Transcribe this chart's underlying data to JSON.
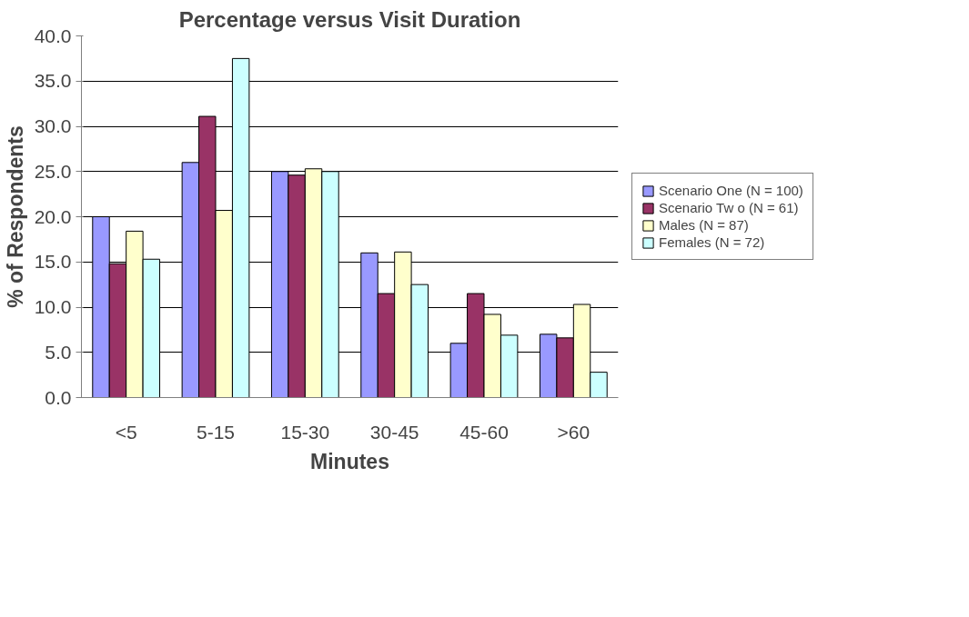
{
  "chart_data": {
    "type": "bar",
    "title": "Percentage versus Visit Duration",
    "xlabel": "Minutes",
    "ylabel": "% of Respondents",
    "categories": [
      "<5",
      "5-15",
      "15-30",
      "30-45",
      "45-60",
      ">60"
    ],
    "series": [
      {
        "name": "Scenario One (N = 100)",
        "color": "#9999ff",
        "values": [
          20.0,
          26.0,
          25.0,
          16.0,
          6.0,
          7.0
        ]
      },
      {
        "name": "Scenario Tw o (N = 61)",
        "color": "#993366",
        "values": [
          14.8,
          31.1,
          24.6,
          11.5,
          11.5,
          6.6
        ]
      },
      {
        "name": "Males (N = 87)",
        "color": "#ffffcc",
        "values": [
          18.4,
          20.7,
          25.3,
          16.1,
          9.2,
          10.3
        ]
      },
      {
        "name": "Females (N = 72)",
        "color": "#ccffff",
        "values": [
          15.3,
          37.5,
          25.0,
          12.5,
          6.9,
          2.8
        ]
      }
    ],
    "ylim": [
      0,
      40
    ],
    "yticks": [
      {
        "value": 0,
        "label": "0.0"
      },
      {
        "value": 5,
        "label": "5.0"
      },
      {
        "value": 10,
        "label": "10.0"
      },
      {
        "value": 15,
        "label": "15.0"
      },
      {
        "value": 20,
        "label": "20.0"
      },
      {
        "value": 25,
        "label": "25.0"
      },
      {
        "value": 30,
        "label": "30.0"
      },
      {
        "value": 35,
        "label": "35.0"
      },
      {
        "value": 40,
        "label": "40.0"
      }
    ],
    "grid": "y",
    "legend": "right"
  }
}
